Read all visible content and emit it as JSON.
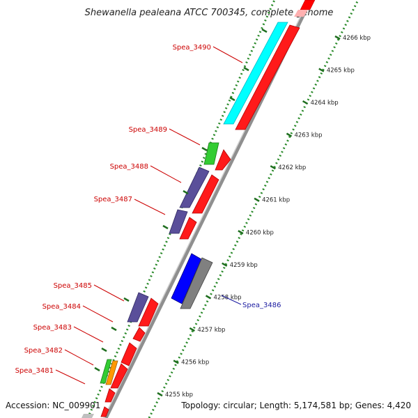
{
  "title": "Shewanella pealeana ATCC 700345, complete genome",
  "footer": {
    "accession": "Accession: NC_009901",
    "summary": "Topology: circular; Length: 5,174,581 bp; Genes: 4,420"
  },
  "colors": {
    "forward_gene": "#ff0000",
    "reverse_gene": "#5a4f9a",
    "label_forward": "#cc0000",
    "label_reverse": "#1a1aa0",
    "backbone": "#9a9a9a",
    "tick": "#2a8a2a"
  },
  "scale": {
    "unit": "kbp",
    "ticks": [
      {
        "label": "4255 kbp"
      },
      {
        "label": "4256 kbp"
      },
      {
        "label": "4257 kbp"
      },
      {
        "label": "4258 kbp"
      },
      {
        "label": "4259 kbp"
      },
      {
        "label": "4260 kbp"
      },
      {
        "label": "4261 kbp"
      },
      {
        "label": "4262 kbp"
      },
      {
        "label": "4263 kbp"
      },
      {
        "label": "4264 kbp"
      },
      {
        "label": "4265 kbp"
      },
      {
        "label": "4266 kbp"
      }
    ]
  },
  "genes": [
    {
      "id": "Spea_3481",
      "label_color": "red"
    },
    {
      "id": "Spea_3482",
      "label_color": "red"
    },
    {
      "id": "Spea_3483",
      "label_color": "red"
    },
    {
      "id": "Spea_3484",
      "label_color": "red"
    },
    {
      "id": "Spea_3485",
      "label_color": "red"
    },
    {
      "id": "Spea_3486",
      "label_color": "blue"
    },
    {
      "id": "Spea_3487",
      "label_color": "red"
    },
    {
      "id": "Spea_3488",
      "label_color": "red"
    },
    {
      "id": "Spea_3489",
      "label_color": "red"
    },
    {
      "id": "Spea_3490",
      "label_color": "red"
    }
  ]
}
